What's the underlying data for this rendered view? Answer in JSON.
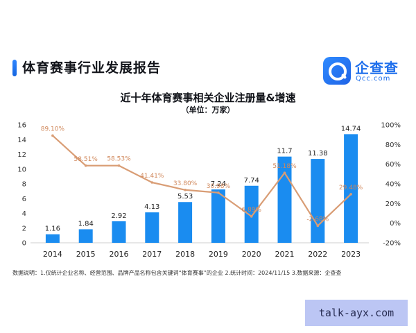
{
  "report_title": "体育赛事行业发展报告",
  "logo": {
    "cn": "企查查",
    "en": "Qcc.com"
  },
  "footnote": "数据说明：1.仅统计企业名称、经营范围、品牌产品名称包含关键词“体育赛事”的企业  2.统计时间：2024/11/15  3.数据来源：企查查",
  "watermark": "talk-ayx.com",
  "colors": {
    "bar": "#1a8cf0",
    "line": "#d99d75",
    "label": "#d0875a",
    "accent": "#1f6fec"
  },
  "chart_data": {
    "type": "bar",
    "title": "近十年体育赛事相关企业注册量&增速",
    "subtitle": "（单位：万家）",
    "categories": [
      "2014",
      "2015",
      "2016",
      "2017",
      "2018",
      "2019",
      "2020",
      "2021",
      "2022",
      "2023"
    ],
    "series": [
      {
        "type": "bar",
        "axis": "left",
        "values": [
          1.16,
          1.84,
          2.92,
          4.13,
          5.53,
          7.24,
          7.74,
          11.7,
          11.38,
          14.74
        ],
        "labels": [
          "1.16",
          "1.84",
          "2.92",
          "4.13",
          "5.53",
          "7.24",
          "7.74",
          "11.7",
          "11.38",
          "14.74"
        ]
      },
      {
        "type": "line",
        "axis": "right",
        "values": [
          89.1,
          58.51,
          58.53,
          41.41,
          33.8,
          30.98,
          6.89,
          51.18,
          -2.68,
          29.48
        ],
        "labels": [
          "89.10%",
          "58.51%",
          "58.53%",
          "41.41%",
          "33.80%",
          "30.98%",
          "6.89%",
          "51.18%",
          "-2.68%",
          "29.48%"
        ]
      }
    ],
    "ylim_left": [
      0,
      16
    ],
    "yticks_left": [
      "0",
      "2",
      "4",
      "6",
      "8",
      "10",
      "12",
      "14",
      "16"
    ],
    "ylim_right": [
      -20,
      100
    ],
    "yticks_right": [
      "-20%",
      "0%",
      "20%",
      "40%",
      "60%",
      "80%",
      "100%"
    ],
    "grid": false,
    "legend": "none"
  }
}
